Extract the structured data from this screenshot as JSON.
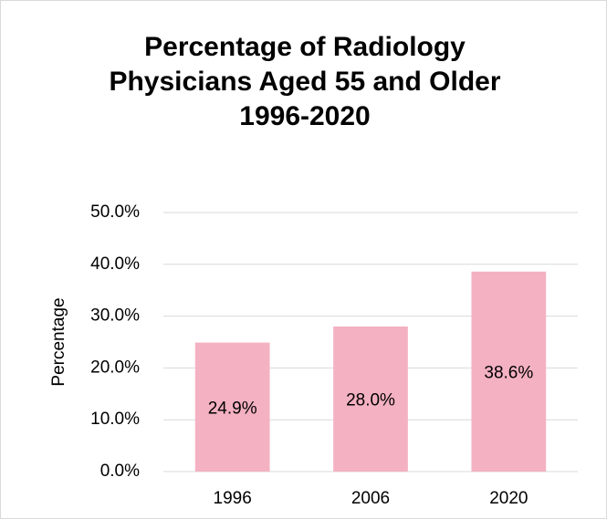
{
  "chart_data": {
    "type": "bar",
    "title": "Percentage of Radiology Physicians Aged 55 and Older",
    "subtitle": "1996-2020",
    "y_label": "Percentage",
    "categories": [
      "1996",
      "2006",
      "2020"
    ],
    "values": [
      24.9,
      28.0,
      38.6
    ],
    "value_labels": [
      "24.9%",
      "28.0%",
      "38.6%"
    ],
    "color": "#f4b1c2",
    "ylim": [
      0,
      50
    ],
    "yticks": [
      {
        "value": 0,
        "label": "0.0%"
      },
      {
        "value": 10,
        "label": "10.0%"
      },
      {
        "value": 20,
        "label": "20.0%"
      },
      {
        "value": 30,
        "label": "30.0%"
      },
      {
        "value": 40,
        "label": "40.0%"
      },
      {
        "value": 50,
        "label": "50.0%"
      }
    ],
    "grid": true
  }
}
